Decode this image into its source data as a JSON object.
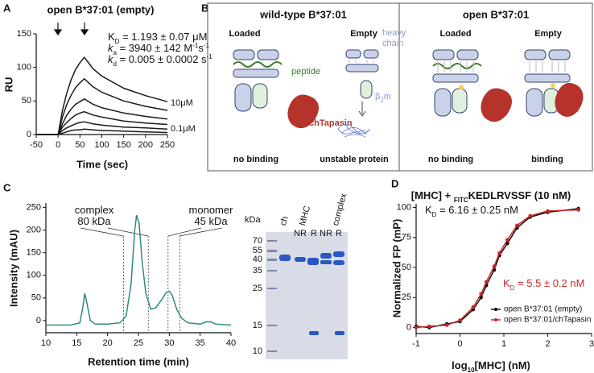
{
  "panel_labels": [
    "A",
    "B",
    "C",
    "D"
  ],
  "chart_data": [
    {
      "type": "line",
      "title": "open B*37:01 (empty)",
      "x_label": "Time (sec)",
      "y_label": "RU",
      "x": [
        -50,
        -20,
        0,
        10,
        20,
        30,
        40,
        50,
        60,
        80,
        100,
        150,
        200,
        250
      ],
      "series": [
        {
          "color": "#1a1a1a",
          "values": [
            0,
            0,
            0,
            36,
            62,
            82,
            97,
            107,
            115,
            98,
            87,
            69,
            58,
            49
          ]
        },
        {
          "color": "#1a1a1a",
          "values": [
            0,
            0,
            0,
            26,
            45,
            59,
            70,
            77,
            83,
            71,
            63,
            50,
            42,
            36
          ]
        },
        {
          "color": "#1a1a1a",
          "values": [
            0,
            0,
            0,
            16,
            29,
            38,
            45,
            49,
            53,
            45,
            40,
            32,
            27,
            23
          ]
        },
        {
          "color": "#1a1a1a",
          "values": [
            0,
            0,
            0,
            11,
            18,
            24,
            29,
            32,
            34,
            29,
            26,
            20,
            17,
            15
          ]
        },
        {
          "color": "#1a1a1a",
          "values": [
            0,
            0,
            0,
            6,
            10,
            13,
            16,
            18,
            19,
            16,
            14,
            11,
            10,
            8
          ]
        },
        {
          "color": "#1a1a1a",
          "values": [
            0,
            0,
            0,
            2,
            4,
            6,
            7,
            7,
            8,
            7,
            6,
            5,
            4,
            3
          ]
        }
      ],
      "xlim": [
        -50,
        250
      ],
      "xticks": [
        -50,
        0,
        50,
        100,
        150,
        200,
        250
      ],
      "ylim": [
        0,
        150
      ],
      "yticks": [
        0,
        50,
        100,
        150
      ],
      "annotations": [
        {
          "parts": [
            {
              "text": "K"
            },
            {
              "text": "D",
              "style": "sub"
            },
            {
              "text": " = 1.193 ± 0.07 μM"
            }
          ]
        },
        {
          "parts": [
            {
              "text": "k",
              "style": "italic"
            },
            {
              "text": "a",
              "style": "sub"
            },
            {
              "text": " = 3940 ± 142 M"
            },
            {
              "text": "-1",
              "style": "sup"
            },
            {
              "text": "s"
            },
            {
              "text": "-1",
              "style": "sup"
            }
          ]
        },
        {
          "parts": [
            {
              "text": "k",
              "style": "italic"
            },
            {
              "text": "d",
              "style": "sub"
            },
            {
              "text": " = 0.005 ± 0.0002 s"
            },
            {
              "text": "-1",
              "style": "sup"
            }
          ]
        }
      ],
      "curve_labels": [
        "10μM",
        "0.1μM"
      ]
    },
    {
      "type": "line",
      "x_label": "Retention time (min)",
      "y_label": "Intensity (mAU)",
      "x": [
        10,
        14,
        15.5,
        16,
        16.3,
        16.7,
        17.2,
        18,
        20,
        22,
        23,
        23.8,
        24.4,
        24.7,
        25.1,
        25.6,
        26.2,
        27,
        27.8,
        28.7,
        29.5,
        30,
        30.5,
        31.2,
        32,
        33,
        35,
        36,
        36.7,
        37.5,
        40
      ],
      "series": [
        {
          "color": "#2e8b7e",
          "values": [
            -10,
            -10,
            -5,
            30,
            60,
            35,
            0,
            -8,
            -8,
            -5,
            10,
            80,
            200,
            233,
            215,
            130,
            60,
            25,
            28,
            45,
            62,
            65,
            55,
            25,
            5,
            -5,
            -8,
            -3,
            -3,
            -8,
            -10
          ]
        }
      ],
      "xlim": [
        10,
        40
      ],
      "xticks": [
        10,
        15,
        20,
        25,
        30,
        35,
        40
      ],
      "ylim": [
        -27,
        260
      ],
      "yticks": [
        0,
        50,
        100,
        150,
        200,
        250
      ],
      "marker_lines": [
        22.6,
        26.6,
        29.8,
        31.7
      ],
      "annotations": [
        {
          "parts": [
            {
              "text": "complex"
            }
          ]
        },
        {
          "parts": [
            {
              "text": "80 kDa"
            }
          ]
        },
        {
          "parts": [
            {
              "text": "monomer"
            }
          ]
        },
        {
          "parts": [
            {
              "text": "45 kDa"
            }
          ]
        }
      ]
    },
    {
      "type": "line",
      "markers": true,
      "title": [
        {
          "text": "[MHC] + "
        },
        {
          "text": "FITC",
          "style": "sub"
        },
        {
          "text": "KEDLRVSSF (10 nM)"
        }
      ],
      "x_label": [
        {
          "text": "log"
        },
        {
          "text": "10",
          "style": "sub"
        },
        {
          "text": "[MHC] (nM)"
        }
      ],
      "y_label": "Normalized FP (mP)",
      "x": [
        -1,
        -0.7,
        -0.3,
        0,
        0.3,
        0.48,
        0.6,
        0.78,
        0.9,
        1.08,
        1.3,
        1.6,
        2,
        2.7
      ],
      "series": [
        {
          "name": "open B*37:01 (empty)",
          "color": "#111111",
          "values": [
            1,
            0,
            3,
            5,
            15,
            25,
            35,
            48,
            60,
            70,
            83,
            92,
            96,
            99
          ]
        },
        {
          "name": "open B*37:01/chTapasin",
          "color": "#c62828",
          "values": [
            0,
            1,
            2,
            6,
            17,
            28,
            38,
            51,
            62,
            73,
            85,
            93,
            97,
            98
          ]
        }
      ],
      "xlim": [
        -1,
        3
      ],
      "xticks": [
        -1,
        0,
        1,
        2,
        3
      ],
      "ylim": [
        -5,
        103
      ],
      "yticks": [
        0,
        25,
        50,
        75,
        100
      ],
      "legend": "lower right",
      "annotations": [
        {
          "color": "#111111",
          "parts": [
            {
              "text": "K"
            },
            {
              "text": "D",
              "style": "sub"
            },
            {
              "text": " = 6.16 ± 0.25 nM"
            }
          ]
        },
        {
          "color": "#c62828",
          "parts": [
            {
              "text": "K"
            },
            {
              "text": "D",
              "style": "sub"
            },
            {
              "text": " = 5.5 ± 0.2 nM"
            }
          ]
        }
      ]
    }
  ],
  "diagram": {
    "left_title": "wild-type B*37:01",
    "right_title": "open B*37:01",
    "states": [
      "Loaded",
      "Empty",
      "Loaded",
      "Empty"
    ],
    "labels": {
      "peptide": "peptide",
      "heavy": "heavy",
      "chain": "chain",
      "b2m": [
        {
          "text": "β"
        },
        {
          "text": "2",
          "style": "sub"
        },
        {
          "text": "m"
        }
      ],
      "tapasin": "chTapasin"
    },
    "outcomes": [
      "no binding",
      "unstable protein",
      "no binding",
      "binding"
    ]
  },
  "gel": {
    "unit": "kDa",
    "ladder": [
      70,
      55,
      40,
      35,
      25,
      15,
      10
    ],
    "lanes": [
      "ch",
      "MHC",
      "complex"
    ],
    "conditions": [
      "NR",
      "R",
      "NR",
      "R"
    ]
  }
}
